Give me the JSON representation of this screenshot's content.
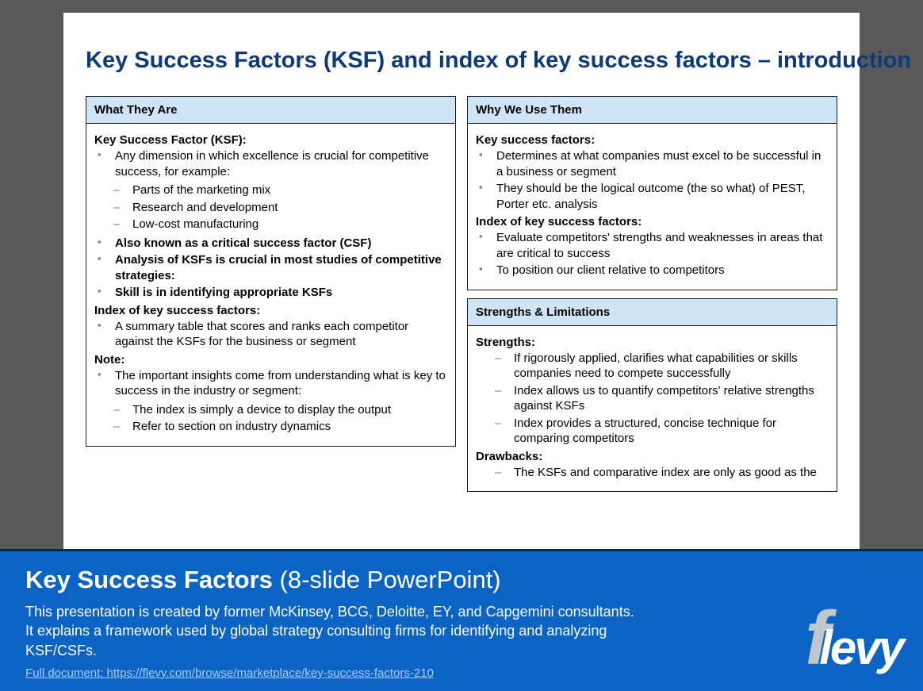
{
  "colors": {
    "page_bg": "#595959",
    "slide_bg": "#ffffff",
    "title": "#0d3a78",
    "panel_border": "#1a1a1a",
    "panel_header_bg": "#cfe4f5",
    "bullet_marker": "#7f7f7f",
    "footer_bg": "#0b63c4",
    "footer_border_top": "#002a5c",
    "footer_text": "#ffffff",
    "footer_link": "#a9d0f5",
    "logo_f": "#c0c7ce",
    "logo_rest": "#ffffff"
  },
  "slide": {
    "title": "Key Success Factors (KSF) and index of key success factors – introduction",
    "left": {
      "what": {
        "header": "What They Are",
        "s1_label": "Key Success Factor (KSF):",
        "s1_b1": "Any dimension in which excellence is crucial for competitive success, for example:",
        "s1_d1": "Parts of the marketing mix",
        "s1_d2": "Research and development",
        "s1_d3": "Low-cost manufacturing",
        "s1_b2": "Also known as a critical success factor (CSF)",
        "s1_b3": "Analysis of KSFs is crucial in most studies of competitive strategies:",
        "s1_b4": "Skill is in identifying appropriate KSFs",
        "s2_label": "Index of key success factors:",
        "s2_b1": "A summary table that scores and ranks each competitor against the KSFs for the business or segment",
        "s3_label": "Note:",
        "s3_b1": "The important insights come from understanding what is key to success in the industry or segment:",
        "s3_d1": "The index is simply a device to display the output",
        "s3_d2": "Refer to section on industry dynamics"
      }
    },
    "right": {
      "why": {
        "header": "Why We Use Them",
        "s1_label": "Key success factors:",
        "s1_b1": "Determines at what companies must excel to be successful in a business or segment",
        "s1_b2": "They should be the logical outcome (the so what) of PEST, Porter etc. analysis",
        "s2_label": "Index of key success factors:",
        "s2_b1": "Evaluate competitors' strengths and weaknesses in areas that are critical to success",
        "s2_b2": "To position our client relative to competitors"
      },
      "sl": {
        "header": "Strengths & Limitations",
        "s1_label": "Strengths:",
        "s1_d1": "If rigorously applied, clarifies what capabilities or skills companies need to compete successfully",
        "s1_d2": "Index allows us to quantify competitors' relative strengths against KSFs",
        "s1_d3": "Index provides a structured, concise technique for comparing competitors",
        "s2_label": "Drawbacks:",
        "s2_d1": "The KSFs and comparative index are only as good as the"
      }
    }
  },
  "footer": {
    "title_bold": "Key Success Factors",
    "title_rest": " (8-slide PowerPoint)",
    "description": "This presentation is created by former McKinsey, BCG, Deloitte, EY, and Capgemini consultants. It explains a framework used by global strategy consulting firms for identifying and analyzing KSF/CSFs.",
    "link_label": "Full document: https://flevy.com/browse/marketplace/key-success-factors-210",
    "link_href": "https://flevy.com/browse/marketplace/key-success-factors-210",
    "logo_f": "f",
    "logo_rest": "levy"
  }
}
